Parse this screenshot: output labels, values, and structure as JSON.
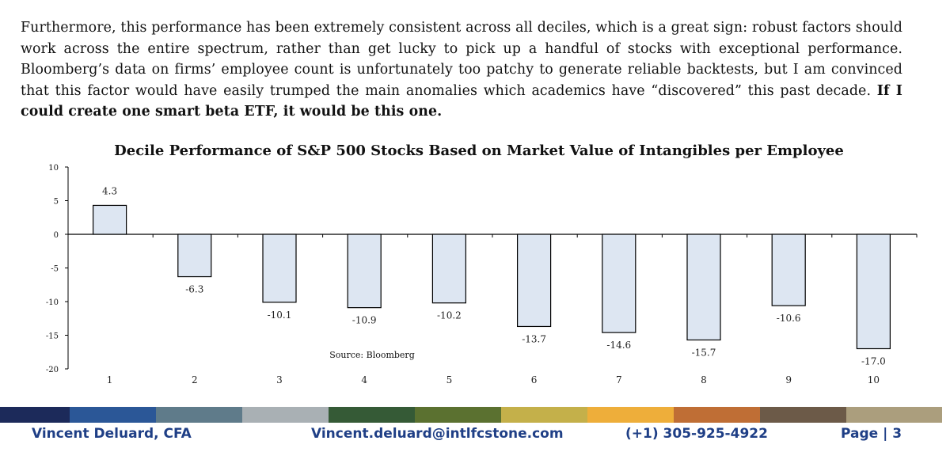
{
  "paragraph": {
    "text": "Furthermore, this performance has been extremely consistent across all deciles, which is a great sign: robust factors should work across the entire spectrum, rather than get lucky to pick up a handful of stocks with exceptional performance. Bloomberg’s data on firms’ employee count is unfortunately too patchy to generate reliable backtests, but I am convinced that this factor would have easily trumped the main anomalies which academics have “discovered” this past decade. ",
    "bold_text": "If I could create one smart beta ETF, it would be this one."
  },
  "chart_data": {
    "type": "bar",
    "title": "Decile Performance of S&P 500 Stocks Based on Market Value of Intangibles per Employee",
    "categories": [
      "1",
      "2",
      "3",
      "4",
      "5",
      "6",
      "7",
      "8",
      "9",
      "10"
    ],
    "values": [
      4.3,
      -6.3,
      -10.1,
      -10.9,
      -10.2,
      -13.7,
      -14.6,
      -15.7,
      -10.6,
      -17.0
    ],
    "labels": [
      "4.3",
      "-6.3",
      "-10.1",
      "-10.9",
      "-10.2",
      "-13.7",
      "-14.6",
      "-15.7",
      "-10.6",
      "-17.0"
    ],
    "y_ticks": [
      "10",
      "5",
      "0",
      "-5",
      "-10",
      "-15",
      "-20"
    ],
    "y_tick_values": [
      10,
      5,
      0,
      -5,
      -10,
      -15,
      -20
    ],
    "ylim": [
      -20,
      10
    ],
    "source": "Source: Bloomberg",
    "bar_fill": "#dde6f2",
    "bar_stroke": "#000000"
  },
  "color_band": [
    "#1c2a5a",
    "#2b5797",
    "#5f7b8a",
    "#a9b0b4",
    "#355a36",
    "#5b7130",
    "#c4b04a",
    "#eeae3a",
    "#bf6e35",
    "#6c5a48",
    "#ab9e7d"
  ],
  "footer": {
    "author": "Vincent Deluard, CFA",
    "email": "Vincent.deluard@intlfcstone.com",
    "phone": "(+1) 305-925-4922",
    "page": "Page | 3"
  }
}
